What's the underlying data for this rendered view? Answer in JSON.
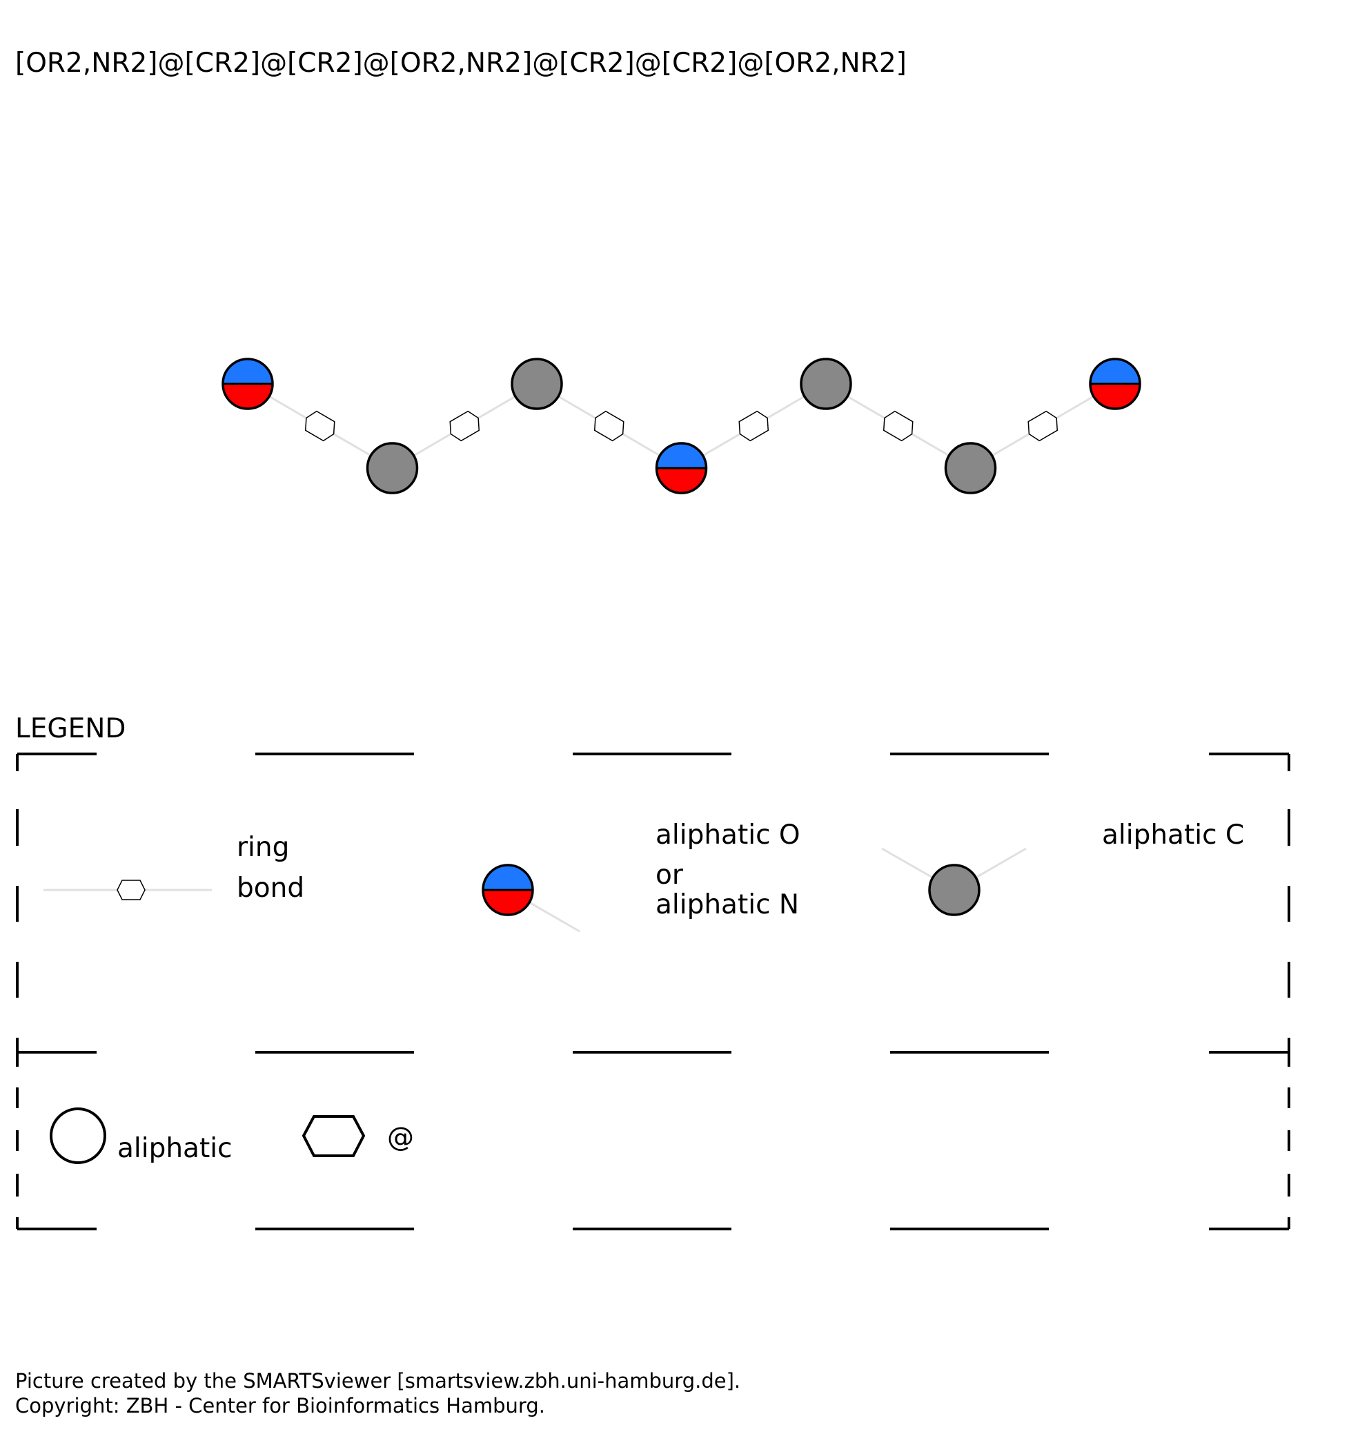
{
  "smarts": "[OR2,NR2]@[CR2]@[CR2]@[OR2,NR2]@[CR2]@[CR2]@[OR2,NR2]",
  "colors": {
    "o_or_n_top": "#1e78ff",
    "o_or_n_bottom": "#ff0000",
    "carbon": "#888888",
    "bond": "#e0e0e0",
    "outline": "#000000"
  },
  "molecule": {
    "atoms": [
      {
        "type": "o_or_n"
      },
      {
        "type": "c"
      },
      {
        "type": "c"
      },
      {
        "type": "o_or_n"
      },
      {
        "type": "c"
      },
      {
        "type": "c"
      },
      {
        "type": "o_or_n"
      }
    ],
    "bonds": [
      {
        "type": "ring"
      },
      {
        "type": "ring"
      },
      {
        "type": "ring"
      },
      {
        "type": "ring"
      },
      {
        "type": "ring"
      },
      {
        "type": "ring"
      }
    ]
  },
  "legend": {
    "title": "LEGEND",
    "ring_bond": [
      "ring",
      "bond"
    ],
    "o_or_n": [
      "aliphatic O",
      "or",
      "aliphatic N"
    ],
    "carbon": "aliphatic C",
    "aliphatic": "aliphatic",
    "ring_symbol": "@"
  },
  "footer": {
    "line1": "Picture created by the SMARTSviewer [smartsview.zbh.uni-hamburg.de].",
    "line2": "Copyright: ZBH - Center for Bioinformatics Hamburg."
  }
}
